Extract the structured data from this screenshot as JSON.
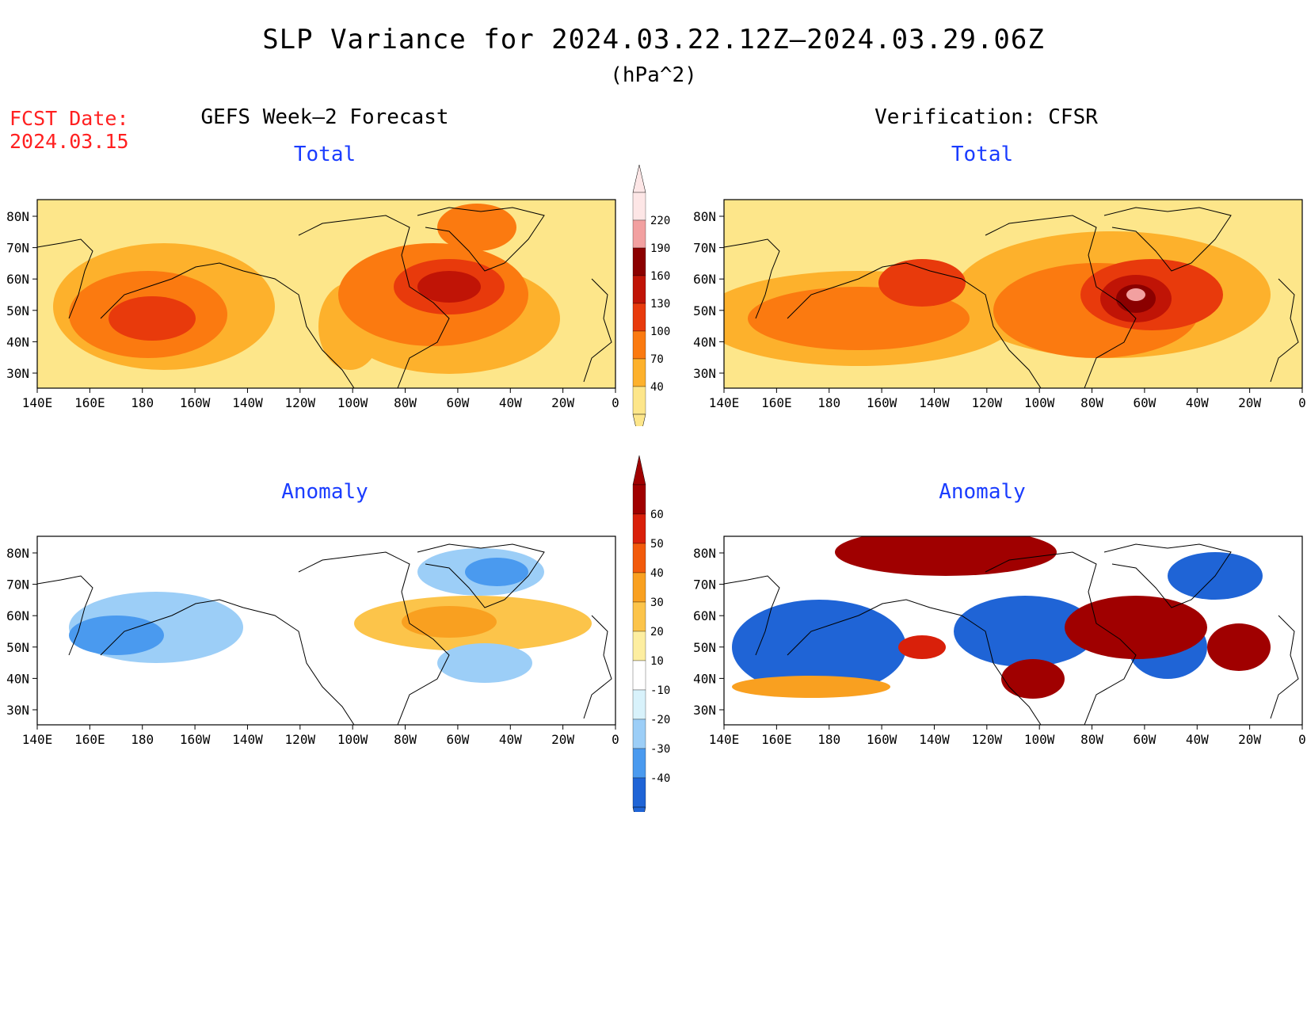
{
  "header": {
    "title": "SLP Variance for 2024.03.22.12Z–2024.03.29.06Z",
    "units": "(hPa^2)"
  },
  "fcst": {
    "label": "FCST Date:",
    "date": "2024.03.15"
  },
  "columns": {
    "left": "GEFS Week–2 Forecast",
    "right": "Verification: CFSR"
  },
  "panels": {
    "total": "Total",
    "anomaly": "Anomaly"
  },
  "lat_labels": [
    "80N",
    "70N",
    "60N",
    "50N",
    "40N",
    "30N"
  ],
  "lon_labels": [
    "140E",
    "160E",
    "180",
    "160W",
    "140W",
    "120W",
    "100W",
    "80W",
    "60W",
    "40W",
    "20W",
    "0"
  ],
  "colorbars": {
    "total": {
      "levels": [
        "40",
        "70",
        "100",
        "130",
        "160",
        "190",
        "220"
      ],
      "colors": [
        "#fde68a",
        "#fdb12c",
        "#fb7a10",
        "#e83a0c",
        "#c01406",
        "#8b0000",
        "#f2a0a0",
        "#fde6e6"
      ]
    },
    "anomaly": {
      "levels": [
        "60",
        "50",
        "40",
        "30",
        "20",
        "10",
        "-10",
        "-20",
        "-30",
        "-40"
      ],
      "colors": [
        "#a00000",
        "#d9200a",
        "#f25a0b",
        "#f9a020",
        "#fcc44a",
        "#fdeea0",
        "#ffffff",
        "#d8f2fb",
        "#9ccef7",
        "#4a9aef",
        "#1f64d6"
      ]
    }
  },
  "blobs": {
    "gefs_total": [
      [
        "#fde68a",
        620,
        140,
        340,
        115
      ],
      [
        "#fdb12c",
        160,
        135,
        140,
        80
      ],
      [
        "#fdb12c",
        520,
        150,
        140,
        70
      ],
      [
        "#fdb12c",
        395,
        160,
        40,
        55
      ],
      [
        "#fb7a10",
        140,
        145,
        100,
        55
      ],
      [
        "#fb7a10",
        500,
        120,
        120,
        65
      ],
      [
        "#fb7a10",
        555,
        35,
        50,
        30
      ],
      [
        "#e83a0c",
        145,
        150,
        55,
        28
      ],
      [
        "#e83a0c",
        520,
        110,
        70,
        35
      ],
      [
        "#c01406",
        520,
        110,
        40,
        20
      ]
    ],
    "cfsr_total": [
      [
        "#fde68a",
        640,
        145,
        340,
        112
      ],
      [
        "#fdb12c",
        170,
        150,
        200,
        60
      ],
      [
        "#fdb12c",
        490,
        120,
        200,
        80
      ],
      [
        "#fb7a10",
        170,
        150,
        140,
        40
      ],
      [
        "#fb7a10",
        470,
        140,
        130,
        60
      ],
      [
        "#e83a0c",
        540,
        120,
        90,
        45
      ],
      [
        "#e83a0c",
        250,
        105,
        55,
        30
      ],
      [
        "#c01406",
        520,
        125,
        45,
        30
      ],
      [
        "#8b0000",
        520,
        125,
        25,
        18
      ],
      [
        "#f2a0a0",
        520,
        120,
        12,
        8
      ]
    ],
    "gefs_anom": [
      [
        "#9ccef7",
        150,
        115,
        110,
        45
      ],
      [
        "#4a9aef",
        100,
        125,
        60,
        25
      ],
      [
        "#9ccef7",
        560,
        45,
        80,
        30
      ],
      [
        "#4a9aef",
        580,
        45,
        40,
        18
      ],
      [
        "#fcc44a",
        550,
        110,
        150,
        35
      ],
      [
        "#f9a020",
        520,
        108,
        60,
        20
      ],
      [
        "#9ccef7",
        565,
        160,
        60,
        25
      ]
    ],
    "cfsr_anom": [
      [
        "#1f64d6",
        120,
        140,
        110,
        60
      ],
      [
        "#1f64d6",
        380,
        120,
        90,
        45
      ],
      [
        "#1f64d6",
        560,
        140,
        50,
        40
      ],
      [
        "#1f64d6",
        620,
        50,
        60,
        30
      ],
      [
        "#a00000",
        280,
        20,
        140,
        30
      ],
      [
        "#a00000",
        520,
        115,
        90,
        40
      ],
      [
        "#a00000",
        650,
        140,
        40,
        30
      ],
      [
        "#a00000",
        390,
        180,
        40,
        25
      ],
      [
        "#d9200a",
        250,
        140,
        30,
        15
      ],
      [
        "#f9a020",
        110,
        190,
        100,
        14
      ]
    ]
  }
}
